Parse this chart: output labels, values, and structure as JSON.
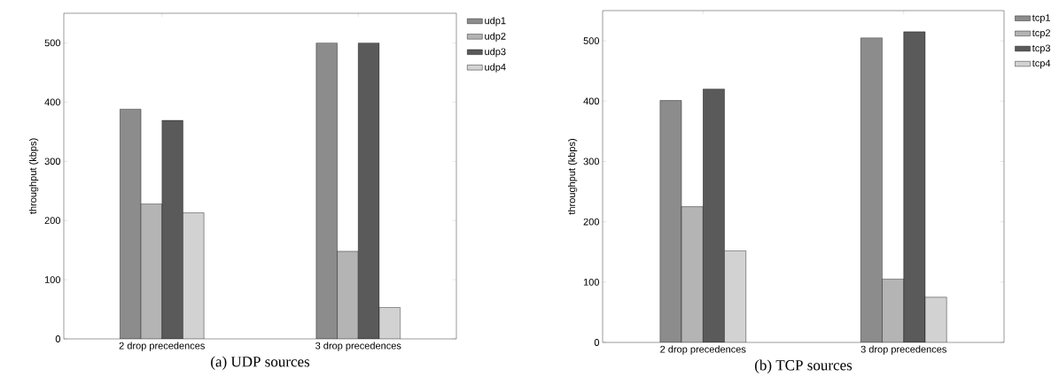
{
  "chart_data": [
    {
      "type": "bar",
      "title": "(a) UDP sources",
      "ylabel": "throughput (kbps)",
      "categories": [
        "2 drop precedences",
        "3 drop precedences"
      ],
      "series": [
        {
          "name": "udp1",
          "color": "#8c8c8c",
          "values": [
            388,
            500
          ]
        },
        {
          "name": "udp2",
          "color": "#b4b4b4",
          "values": [
            228,
            148
          ]
        },
        {
          "name": "udp3",
          "color": "#5a5a5a",
          "values": [
            369,
            500
          ]
        },
        {
          "name": "udp4",
          "color": "#d2d2d2",
          "values": [
            213,
            53
          ]
        }
      ],
      "ylim": [
        0,
        550
      ],
      "yticks": [
        0,
        100,
        200,
        300,
        400,
        500
      ],
      "legend": "top right"
    },
    {
      "type": "bar",
      "title": "(b) TCP sources",
      "ylabel": "throughput (kbps)",
      "categories": [
        "2 drop precedences",
        "3 drop precedences"
      ],
      "series": [
        {
          "name": "tcp1",
          "color": "#8c8c8c",
          "values": [
            401,
            505
          ]
        },
        {
          "name": "tcp2",
          "color": "#b4b4b4",
          "values": [
            225,
            105
          ]
        },
        {
          "name": "tcp3",
          "color": "#5a5a5a",
          "values": [
            420,
            515
          ]
        },
        {
          "name": "tcp4",
          "color": "#d2d2d2",
          "values": [
            152,
            75
          ]
        }
      ],
      "ylim": [
        0,
        550
      ],
      "yticks": [
        0,
        100,
        200,
        300,
        400,
        500
      ],
      "legend": "top right"
    }
  ]
}
